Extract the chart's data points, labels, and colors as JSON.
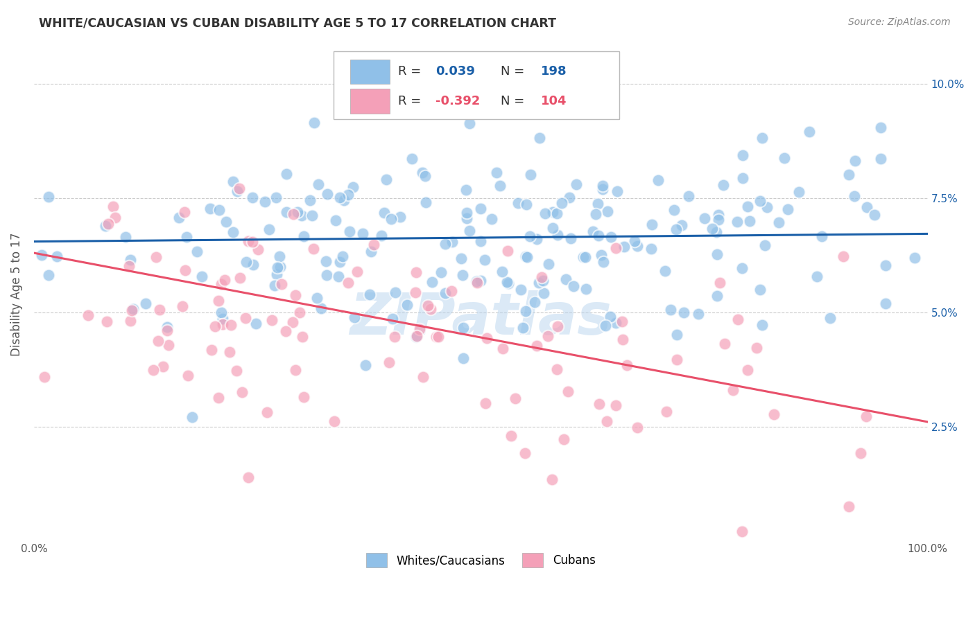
{
  "title": "WHITE/CAUCASIAN VS CUBAN DISABILITY AGE 5 TO 17 CORRELATION CHART",
  "source": "Source: ZipAtlas.com",
  "ylabel": "Disability Age 5 to 17",
  "blue_R": 0.039,
  "blue_N": 198,
  "pink_R": -0.392,
  "pink_N": 104,
  "blue_color": "#90c0e8",
  "pink_color": "#f4a0b8",
  "blue_line_color": "#1a5fa8",
  "pink_line_color": "#e8506a",
  "legend_label_blue": "Whites/Caucasians",
  "legend_label_pink": "Cubans",
  "yticks": [
    2.5,
    5.0,
    7.5,
    10.0
  ],
  "ytick_labels": [
    "2.5%",
    "5.0%",
    "7.5%",
    "10.0%"
  ],
  "xlim": [
    0.0,
    100.0
  ],
  "ylim": [
    0.0,
    10.8
  ],
  "blue_trend_start_y": 6.55,
  "blue_trend_end_y": 6.72,
  "pink_trend_start_y": 6.3,
  "pink_trend_end_y": 2.6,
  "watermark": "ZIPatlas",
  "bg_color": "#ffffff",
  "grid_color": "#cccccc",
  "title_color": "#333333",
  "axis_label_color": "#555555",
  "right_tick_color": "#1a5fa8",
  "scatter_alpha": 0.7,
  "scatter_size": 160,
  "scatter_linewidth": 1.5
}
